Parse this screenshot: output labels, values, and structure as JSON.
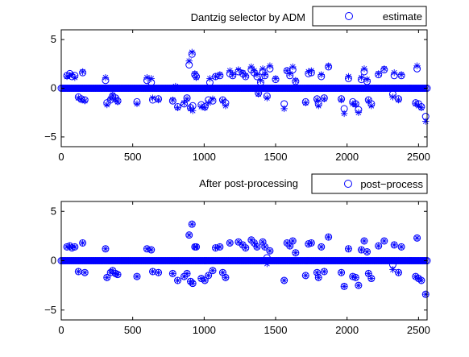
{
  "chart_data": [
    {
      "type": "scatter",
      "title": "Dantzig selector by ADM",
      "xlabel": "",
      "ylabel": "",
      "xlim": [
        0,
        2560
      ],
      "ylim": [
        -6,
        6
      ],
      "xticks": [
        0,
        500,
        1000,
        1500,
        2000,
        2500
      ],
      "yticks": [
        -5,
        0,
        5
      ],
      "grid": false,
      "legend": "top-right",
      "series": [
        {
          "name": "estimate",
          "marker": "circle",
          "color": "#0000ff"
        },
        {
          "name": "",
          "marker": "asterisk",
          "color": "#0000ff"
        }
      ],
      "points": [
        {
          "x": 40,
          "y": 1.3,
          "t": 1.2
        },
        {
          "x": 60,
          "y": 1.5,
          "t": 1.3
        },
        {
          "x": 75,
          "y": 1.2,
          "t": 1.4
        },
        {
          "x": 95,
          "y": 1.3,
          "t": 1.1
        },
        {
          "x": 120,
          "y": -0.9,
          "t": -1.0
        },
        {
          "x": 140,
          "y": -1.1,
          "t": -1.2
        },
        {
          "x": 150,
          "y": 1.6,
          "t": 1.7
        },
        {
          "x": 165,
          "y": -1.2,
          "t": -1.3
        },
        {
          "x": 310,
          "y": 0.8,
          "t": 1.1
        },
        {
          "x": 320,
          "y": -1.5,
          "t": -1.7
        },
        {
          "x": 345,
          "y": -1.2,
          "t": -1.1
        },
        {
          "x": 360,
          "y": -0.8,
          "t": -0.7
        },
        {
          "x": 380,
          "y": -1.0,
          "t": -1.1
        },
        {
          "x": 395,
          "y": -1.3,
          "t": -1.4
        },
        {
          "x": 530,
          "y": -1.4,
          "t": -1.6
        },
        {
          "x": 600,
          "y": 0.8,
          "t": 1.1
        },
        {
          "x": 630,
          "y": 0.6,
          "t": 1.0
        },
        {
          "x": 640,
          "y": -1.2,
          "t": -1.0
        },
        {
          "x": 680,
          "y": -1.1,
          "t": -1.2
        },
        {
          "x": 780,
          "y": -1.3,
          "t": -1.2
        },
        {
          "x": 800,
          "y": 0.0,
          "t": 0.2
        },
        {
          "x": 815,
          "y": -1.9,
          "t": -2.0
        },
        {
          "x": 860,
          "y": -1.6,
          "t": -1.5
        },
        {
          "x": 880,
          "y": -1.0,
          "t": -1.1
        },
        {
          "x": 895,
          "y": 2.4,
          "t": 2.8
        },
        {
          "x": 905,
          "y": -2.0,
          "t": -2.1
        },
        {
          "x": 915,
          "y": 3.5,
          "t": 3.7
        },
        {
          "x": 920,
          "y": -1.8,
          "t": -2.3
        },
        {
          "x": 935,
          "y": 1.4,
          "t": 1.5
        },
        {
          "x": 945,
          "y": 1.2,
          "t": 1.1
        },
        {
          "x": 980,
          "y": -1.7,
          "t": -1.9
        },
        {
          "x": 1005,
          "y": -1.9,
          "t": -2.0
        },
        {
          "x": 1030,
          "y": -1.2,
          "t": -1.5
        },
        {
          "x": 1040,
          "y": 0.6,
          "t": 1.0
        },
        {
          "x": 1060,
          "y": -1.3,
          "t": -1.1
        },
        {
          "x": 1080,
          "y": 1.2,
          "t": 1.2
        },
        {
          "x": 1110,
          "y": 1.3,
          "t": 1.4
        },
        {
          "x": 1130,
          "y": -1.2,
          "t": -1.3
        },
        {
          "x": 1150,
          "y": -1.5,
          "t": -1.8
        },
        {
          "x": 1180,
          "y": 1.5,
          "t": 1.8
        },
        {
          "x": 1200,
          "y": 1.3,
          "t": 1.4
        },
        {
          "x": 1240,
          "y": 1.7,
          "t": 1.9
        },
        {
          "x": 1270,
          "y": 1.5,
          "t": 1.6
        },
        {
          "x": 1290,
          "y": 1.2,
          "t": 1.3
        },
        {
          "x": 1330,
          "y": 1.9,
          "t": 2.2
        },
        {
          "x": 1350,
          "y": 1.6,
          "t": 1.8
        },
        {
          "x": 1370,
          "y": 1.2,
          "t": 1.4
        },
        {
          "x": 1380,
          "y": -0.5,
          "t": -0.6
        },
        {
          "x": 1395,
          "y": 0.6,
          "t": 0.8
        },
        {
          "x": 1410,
          "y": 1.7,
          "t": 2.0
        },
        {
          "x": 1425,
          "y": 1.3,
          "t": 1.4
        },
        {
          "x": 1440,
          "y": -0.8,
          "t": -1.0
        },
        {
          "x": 1460,
          "y": 2.0,
          "t": 2.3
        },
        {
          "x": 1500,
          "y": 0.9,
          "t": 1.0
        },
        {
          "x": 1560,
          "y": -1.6,
          "t": -2.1
        },
        {
          "x": 1580,
          "y": 1.8,
          "t": 1.8
        },
        {
          "x": 1600,
          "y": 1.3,
          "t": 1.5
        },
        {
          "x": 1620,
          "y": 1.9,
          "t": 2.2
        },
        {
          "x": 1640,
          "y": 0.7,
          "t": 0.8
        },
        {
          "x": 1710,
          "y": -1.4,
          "t": -1.5
        },
        {
          "x": 1730,
          "y": 1.5,
          "t": 1.7
        },
        {
          "x": 1750,
          "y": 1.6,
          "t": 1.8
        },
        {
          "x": 1790,
          "y": -1.1,
          "t": -1.2
        },
        {
          "x": 1800,
          "y": -1.6,
          "t": -1.8
        },
        {
          "x": 1820,
          "y": 1.2,
          "t": 1.4
        },
        {
          "x": 1840,
          "y": -1.0,
          "t": -1.1
        },
        {
          "x": 1870,
          "y": 2.2,
          "t": 2.3
        },
        {
          "x": 1960,
          "y": -1.1,
          "t": -1.2
        },
        {
          "x": 1980,
          "y": -2.1,
          "t": -2.6
        },
        {
          "x": 2010,
          "y": 1.0,
          "t": 1.2
        },
        {
          "x": 2040,
          "y": -1.4,
          "t": -1.6
        },
        {
          "x": 2060,
          "y": -1.6,
          "t": -1.7
        },
        {
          "x": 2080,
          "y": -2.2,
          "t": -2.5
        },
        {
          "x": 2100,
          "y": 0.9,
          "t": 1.1
        },
        {
          "x": 2120,
          "y": 1.7,
          "t": 2.0
        },
        {
          "x": 2140,
          "y": 0.7,
          "t": 0.9
        },
        {
          "x": 2150,
          "y": -1.2,
          "t": -1.3
        },
        {
          "x": 2170,
          "y": -1.6,
          "t": -1.8
        },
        {
          "x": 2220,
          "y": 1.4,
          "t": 1.5
        },
        {
          "x": 2260,
          "y": 1.9,
          "t": 2.0
        },
        {
          "x": 2320,
          "y": -0.6,
          "t": -0.9
        },
        {
          "x": 2330,
          "y": 1.3,
          "t": 1.6
        },
        {
          "x": 2360,
          "y": -1.1,
          "t": -1.2
        },
        {
          "x": 2380,
          "y": 1.3,
          "t": 1.4
        },
        {
          "x": 2480,
          "y": -1.5,
          "t": -1.6
        },
        {
          "x": 2490,
          "y": 2.0,
          "t": 2.3
        },
        {
          "x": 2500,
          "y": -1.6,
          "t": -1.8
        },
        {
          "x": 2520,
          "y": -1.9,
          "t": -2.0
        },
        {
          "x": 2550,
          "y": -2.9,
          "t": -3.4
        }
      ]
    },
    {
      "type": "scatter",
      "title": "After post-processing",
      "xlabel": "",
      "ylabel": "",
      "xlim": [
        0,
        2560
      ],
      "ylim": [
        -6,
        6
      ],
      "xticks": [
        0,
        500,
        1000,
        1500,
        2000,
        2500
      ],
      "yticks": [
        -5,
        0,
        5
      ],
      "grid": false,
      "legend": "top-right",
      "series": [
        {
          "name": "post−process",
          "marker": "circle",
          "color": "#0000ff"
        },
        {
          "name": "",
          "marker": "asterisk",
          "color": "#0000ff"
        }
      ],
      "points": [
        {
          "x": 40,
          "y": 1.4,
          "t": 1.4
        },
        {
          "x": 60,
          "y": 1.5,
          "t": 1.5
        },
        {
          "x": 75,
          "y": 1.3,
          "t": 1.3
        },
        {
          "x": 95,
          "y": 1.4,
          "t": 1.4
        },
        {
          "x": 120,
          "y": -1.1,
          "t": -1.1
        },
        {
          "x": 150,
          "y": 1.8,
          "t": 1.8
        },
        {
          "x": 165,
          "y": -1.2,
          "t": -1.2
        },
        {
          "x": 310,
          "y": 1.2,
          "t": 1.2
        },
        {
          "x": 320,
          "y": -1.7,
          "t": -1.7
        },
        {
          "x": 345,
          "y": -1.2,
          "t": -1.2
        },
        {
          "x": 360,
          "y": -1.0,
          "t": -1.0
        },
        {
          "x": 380,
          "y": -1.3,
          "t": -1.3
        },
        {
          "x": 395,
          "y": -1.4,
          "t": -1.4
        },
        {
          "x": 530,
          "y": -1.6,
          "t": -1.6
        },
        {
          "x": 600,
          "y": 1.2,
          "t": 1.2
        },
        {
          "x": 630,
          "y": 1.1,
          "t": 1.1
        },
        {
          "x": 640,
          "y": -1.1,
          "t": -1.1
        },
        {
          "x": 680,
          "y": -1.2,
          "t": -1.2
        },
        {
          "x": 780,
          "y": -1.3,
          "t": -1.3
        },
        {
          "x": 815,
          "y": -2.0,
          "t": -2.0
        },
        {
          "x": 860,
          "y": -1.6,
          "t": -1.6
        },
        {
          "x": 880,
          "y": -1.3,
          "t": -1.3
        },
        {
          "x": 895,
          "y": 2.6,
          "t": 2.6
        },
        {
          "x": 905,
          "y": -2.1,
          "t": -2.1
        },
        {
          "x": 915,
          "y": 3.7,
          "t": 3.7
        },
        {
          "x": 920,
          "y": -2.3,
          "t": -2.3
        },
        {
          "x": 935,
          "y": 1.4,
          "t": 1.4
        },
        {
          "x": 945,
          "y": 1.4,
          "t": 1.4
        },
        {
          "x": 980,
          "y": -1.8,
          "t": -1.8
        },
        {
          "x": 1005,
          "y": -2.0,
          "t": -2.0
        },
        {
          "x": 1030,
          "y": -1.5,
          "t": -1.5
        },
        {
          "x": 1060,
          "y": -1.0,
          "t": -1.0
        },
        {
          "x": 1080,
          "y": 1.3,
          "t": 1.3
        },
        {
          "x": 1110,
          "y": 1.4,
          "t": 1.4
        },
        {
          "x": 1130,
          "y": -1.2,
          "t": -1.2
        },
        {
          "x": 1150,
          "y": -1.7,
          "t": -1.7
        },
        {
          "x": 1180,
          "y": 1.8,
          "t": 1.8
        },
        {
          "x": 1240,
          "y": 1.9,
          "t": 1.9
        },
        {
          "x": 1270,
          "y": 1.6,
          "t": 1.6
        },
        {
          "x": 1290,
          "y": 1.3,
          "t": 1.3
        },
        {
          "x": 1330,
          "y": 2.1,
          "t": 2.1
        },
        {
          "x": 1350,
          "y": 1.8,
          "t": 1.8
        },
        {
          "x": 1370,
          "y": 1.4,
          "t": 1.4
        },
        {
          "x": 1410,
          "y": 1.9,
          "t": 1.9
        },
        {
          "x": 1425,
          "y": 1.4,
          "t": 1.4
        },
        {
          "x": 1440,
          "y": 0.3,
          "t": -0.3
        },
        {
          "x": 1460,
          "y": 1.0,
          "t": 1.0
        },
        {
          "x": 1560,
          "y": -2.0,
          "t": -2.0
        },
        {
          "x": 1580,
          "y": 1.8,
          "t": 1.8
        },
        {
          "x": 1600,
          "y": 1.5,
          "t": 1.5
        },
        {
          "x": 1620,
          "y": 2.0,
          "t": 2.0
        },
        {
          "x": 1640,
          "y": 0.8,
          "t": 0.8
        },
        {
          "x": 1710,
          "y": -1.5,
          "t": -1.5
        },
        {
          "x": 1730,
          "y": 1.7,
          "t": 1.7
        },
        {
          "x": 1750,
          "y": 1.8,
          "t": 1.8
        },
        {
          "x": 1790,
          "y": -1.2,
          "t": -1.2
        },
        {
          "x": 1800,
          "y": -1.7,
          "t": -1.7
        },
        {
          "x": 1820,
          "y": 1.4,
          "t": 1.4
        },
        {
          "x": 1840,
          "y": -1.1,
          "t": -1.1
        },
        {
          "x": 1870,
          "y": 2.4,
          "t": 2.4
        },
        {
          "x": 1960,
          "y": -1.2,
          "t": -1.2
        },
        {
          "x": 1980,
          "y": -2.6,
          "t": -2.6
        },
        {
          "x": 2010,
          "y": 1.2,
          "t": 1.2
        },
        {
          "x": 2040,
          "y": -1.6,
          "t": -1.6
        },
        {
          "x": 2060,
          "y": -1.7,
          "t": -1.7
        },
        {
          "x": 2080,
          "y": -2.5,
          "t": -2.5
        },
        {
          "x": 2100,
          "y": 1.1,
          "t": 1.1
        },
        {
          "x": 2120,
          "y": 2.0,
          "t": 2.0
        },
        {
          "x": 2140,
          "y": 0.9,
          "t": 0.9
        },
        {
          "x": 2150,
          "y": -1.3,
          "t": -1.3
        },
        {
          "x": 2170,
          "y": -1.8,
          "t": -1.8
        },
        {
          "x": 2220,
          "y": 1.5,
          "t": 1.5
        },
        {
          "x": 2260,
          "y": 2.0,
          "t": 2.0
        },
        {
          "x": 2320,
          "y": -0.4,
          "t": -0.9
        },
        {
          "x": 2330,
          "y": 1.6,
          "t": 1.6
        },
        {
          "x": 2360,
          "y": -1.2,
          "t": -1.2
        },
        {
          "x": 2380,
          "y": 1.4,
          "t": 1.4
        },
        {
          "x": 2480,
          "y": -1.6,
          "t": -1.6
        },
        {
          "x": 2490,
          "y": 2.3,
          "t": 2.3
        },
        {
          "x": 2500,
          "y": -1.8,
          "t": -1.8
        },
        {
          "x": 2520,
          "y": -2.0,
          "t": -2.0
        },
        {
          "x": 2550,
          "y": -3.4,
          "t": -3.4
        }
      ]
    }
  ]
}
